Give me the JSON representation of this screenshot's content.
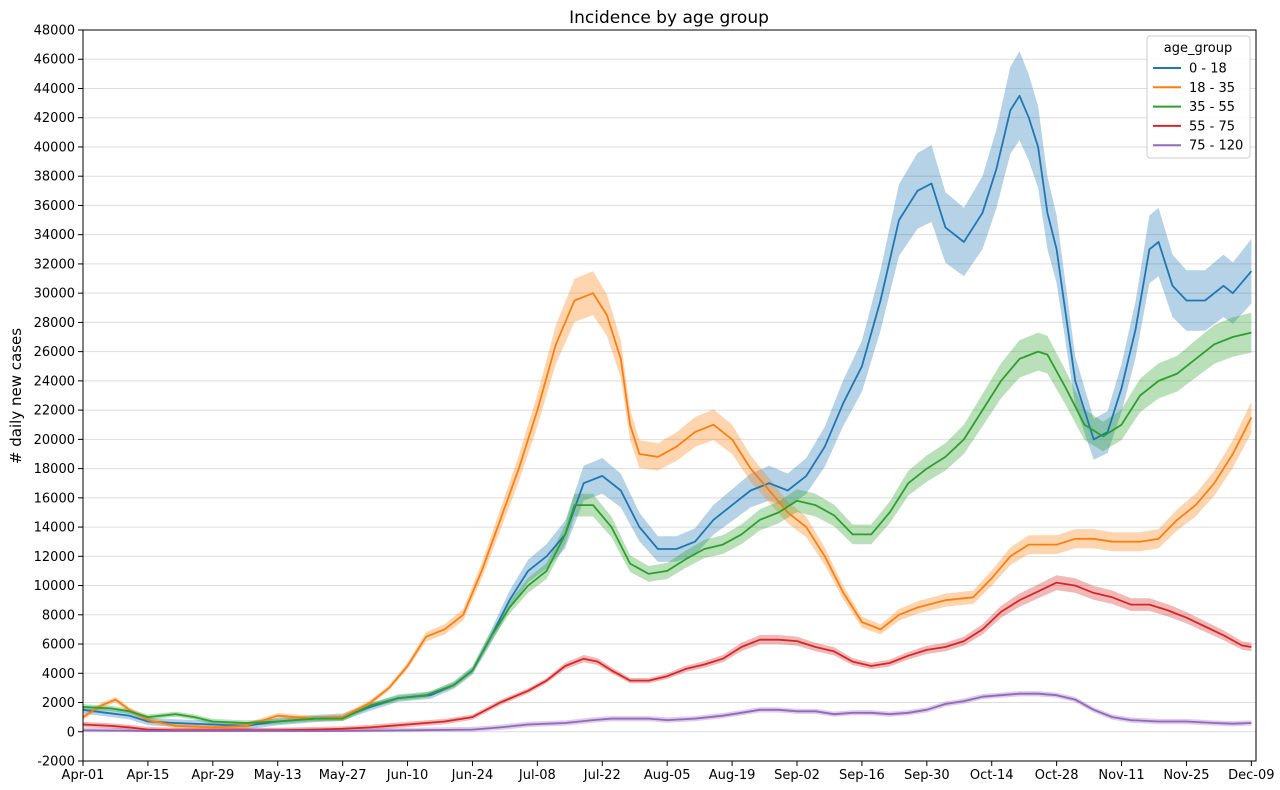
{
  "chart_data": {
    "type": "line",
    "title": "Incidence by age group",
    "xlabel": "",
    "ylabel": "# daily new cases",
    "ylim": [
      -2000,
      48000
    ],
    "yticks": [
      -2000,
      0,
      2000,
      4000,
      6000,
      8000,
      10000,
      12000,
      14000,
      16000,
      18000,
      20000,
      22000,
      24000,
      26000,
      28000,
      30000,
      32000,
      34000,
      36000,
      38000,
      40000,
      42000,
      44000,
      46000,
      48000
    ],
    "xlim": [
      0,
      253
    ],
    "xticks": [
      {
        "x": 0,
        "label": "Apr-01"
      },
      {
        "x": 14,
        "label": "Apr-15"
      },
      {
        "x": 28,
        "label": "Apr-29"
      },
      {
        "x": 42,
        "label": "May-13"
      },
      {
        "x": 56,
        "label": "May-27"
      },
      {
        "x": 70,
        "label": "Jun-10"
      },
      {
        "x": 84,
        "label": "Jun-24"
      },
      {
        "x": 98,
        "label": "Jul-08"
      },
      {
        "x": 112,
        "label": "Jul-22"
      },
      {
        "x": 126,
        "label": "Aug-05"
      },
      {
        "x": 140,
        "label": "Aug-19"
      },
      {
        "x": 154,
        "label": "Sep-02"
      },
      {
        "x": 168,
        "label": "Sep-16"
      },
      {
        "x": 182,
        "label": "Sep-30"
      },
      {
        "x": 196,
        "label": "Oct-14"
      },
      {
        "x": 210,
        "label": "Oct-28"
      },
      {
        "x": 224,
        "label": "Nov-11"
      },
      {
        "x": 238,
        "label": "Nov-25"
      },
      {
        "x": 252,
        "label": "Dec-09"
      }
    ],
    "grid": "horizontal",
    "legend": {
      "title": "age_group",
      "position": "top-right"
    },
    "series": [
      {
        "name": "0 - 18",
        "color": "#1f77b4",
        "points": [
          [
            0,
            1500
          ],
          [
            5,
            1300
          ],
          [
            10,
            1100
          ],
          [
            14,
            700
          ],
          [
            20,
            600
          ],
          [
            28,
            500
          ],
          [
            35,
            400
          ],
          [
            42,
            700
          ],
          [
            50,
            900
          ],
          [
            56,
            1000
          ],
          [
            62,
            1700
          ],
          [
            68,
            2300
          ],
          [
            75,
            2500
          ],
          [
            80,
            3200
          ],
          [
            84,
            4200
          ],
          [
            88,
            6500
          ],
          [
            92,
            9000
          ],
          [
            96,
            11000
          ],
          [
            100,
            12000
          ],
          [
            104,
            13500
          ],
          [
            108,
            17000
          ],
          [
            112,
            17500
          ],
          [
            116,
            16500
          ],
          [
            120,
            14000
          ],
          [
            124,
            12500
          ],
          [
            128,
            12500
          ],
          [
            132,
            13000
          ],
          [
            136,
            14500
          ],
          [
            140,
            15500
          ],
          [
            144,
            16500
          ],
          [
            148,
            17000
          ],
          [
            152,
            16500
          ],
          [
            156,
            17500
          ],
          [
            160,
            19500
          ],
          [
            164,
            22500
          ],
          [
            168,
            25000
          ],
          [
            172,
            29500
          ],
          [
            176,
            35000
          ],
          [
            180,
            37000
          ],
          [
            183,
            37500
          ],
          [
            186,
            34500
          ],
          [
            190,
            33500
          ],
          [
            194,
            35500
          ],
          [
            197,
            38500
          ],
          [
            200,
            42500
          ],
          [
            202,
            43500
          ],
          [
            204,
            42000
          ],
          [
            206,
            40000
          ],
          [
            208,
            35500
          ],
          [
            210,
            33000
          ],
          [
            212,
            28500
          ],
          [
            214,
            24000
          ],
          [
            218,
            20000
          ],
          [
            221,
            20500
          ],
          [
            224,
            23500
          ],
          [
            227,
            27500
          ],
          [
            230,
            33000
          ],
          [
            232,
            33500
          ],
          [
            235,
            30500
          ],
          [
            238,
            29500
          ],
          [
            242,
            29500
          ],
          [
            246,
            30500
          ],
          [
            248,
            30000
          ],
          [
            252,
            31500
          ]
        ]
      },
      {
        "name": "18 - 35",
        "color": "#ff7f0e",
        "points": [
          [
            0,
            1000
          ],
          [
            4,
            1800
          ],
          [
            7,
            2200
          ],
          [
            10,
            1500
          ],
          [
            14,
            800
          ],
          [
            20,
            400
          ],
          [
            28,
            300
          ],
          [
            35,
            400
          ],
          [
            42,
            1100
          ],
          [
            50,
            900
          ],
          [
            56,
            1000
          ],
          [
            62,
            2000
          ],
          [
            66,
            3000
          ],
          [
            70,
            4500
          ],
          [
            74,
            6500
          ],
          [
            78,
            7000
          ],
          [
            82,
            8000
          ],
          [
            86,
            11000
          ],
          [
            90,
            14500
          ],
          [
            94,
            18000
          ],
          [
            98,
            22000
          ],
          [
            102,
            26500
          ],
          [
            106,
            29500
          ],
          [
            110,
            30000
          ],
          [
            113,
            28500
          ],
          [
            116,
            25500
          ],
          [
            118,
            21000
          ],
          [
            120,
            19000
          ],
          [
            124,
            18800
          ],
          [
            128,
            19500
          ],
          [
            132,
            20500
          ],
          [
            136,
            21000
          ],
          [
            140,
            20000
          ],
          [
            144,
            18000
          ],
          [
            148,
            16500
          ],
          [
            152,
            15000
          ],
          [
            156,
            14000
          ],
          [
            160,
            12000
          ],
          [
            164,
            9500
          ],
          [
            168,
            7500
          ],
          [
            172,
            7000
          ],
          [
            176,
            8000
          ],
          [
            180,
            8500
          ],
          [
            186,
            9000
          ],
          [
            192,
            9200
          ],
          [
            196,
            10500
          ],
          [
            200,
            12000
          ],
          [
            204,
            12800
          ],
          [
            210,
            12800
          ],
          [
            214,
            13200
          ],
          [
            218,
            13200
          ],
          [
            222,
            13000
          ],
          [
            228,
            13000
          ],
          [
            232,
            13200
          ],
          [
            236,
            14500
          ],
          [
            240,
            15500
          ],
          [
            244,
            17000
          ],
          [
            248,
            19000
          ],
          [
            252,
            21500
          ]
        ]
      },
      {
        "name": "35 - 55",
        "color": "#2ca02c",
        "points": [
          [
            0,
            1700
          ],
          [
            6,
            1600
          ],
          [
            10,
            1400
          ],
          [
            14,
            1000
          ],
          [
            20,
            1200
          ],
          [
            24,
            1000
          ],
          [
            28,
            700
          ],
          [
            35,
            600
          ],
          [
            42,
            700
          ],
          [
            50,
            900
          ],
          [
            56,
            900
          ],
          [
            62,
            1800
          ],
          [
            68,
            2300
          ],
          [
            74,
            2500
          ],
          [
            80,
            3200
          ],
          [
            84,
            4200
          ],
          [
            88,
            6500
          ],
          [
            92,
            8500
          ],
          [
            96,
            10000
          ],
          [
            100,
            11000
          ],
          [
            104,
            13500
          ],
          [
            106,
            15500
          ],
          [
            110,
            15500
          ],
          [
            114,
            14000
          ],
          [
            118,
            11500
          ],
          [
            122,
            10800
          ],
          [
            126,
            11000
          ],
          [
            130,
            11800
          ],
          [
            134,
            12500
          ],
          [
            138,
            12800
          ],
          [
            142,
            13500
          ],
          [
            146,
            14500
          ],
          [
            150,
            15000
          ],
          [
            154,
            15800
          ],
          [
            158,
            15500
          ],
          [
            162,
            14800
          ],
          [
            166,
            13500
          ],
          [
            170,
            13500
          ],
          [
            174,
            15000
          ],
          [
            178,
            17000
          ],
          [
            182,
            18000
          ],
          [
            186,
            18800
          ],
          [
            190,
            20000
          ],
          [
            194,
            22000
          ],
          [
            198,
            24000
          ],
          [
            202,
            25500
          ],
          [
            206,
            26000
          ],
          [
            208,
            25800
          ],
          [
            212,
            23500
          ],
          [
            216,
            21000
          ],
          [
            220,
            20200
          ],
          [
            224,
            21000
          ],
          [
            228,
            23000
          ],
          [
            232,
            24000
          ],
          [
            236,
            24500
          ],
          [
            240,
            25500
          ],
          [
            244,
            26500
          ],
          [
            248,
            27000
          ],
          [
            252,
            27300
          ]
        ]
      },
      {
        "name": "55 - 75",
        "color": "#d62728",
        "points": [
          [
            0,
            500
          ],
          [
            6,
            400
          ],
          [
            10,
            300
          ],
          [
            14,
            150
          ],
          [
            20,
            100
          ],
          [
            28,
            100
          ],
          [
            35,
            100
          ],
          [
            42,
            100
          ],
          [
            50,
            150
          ],
          [
            56,
            200
          ],
          [
            62,
            300
          ],
          [
            70,
            500
          ],
          [
            78,
            700
          ],
          [
            84,
            1000
          ],
          [
            90,
            2000
          ],
          [
            96,
            2800
          ],
          [
            100,
            3500
          ],
          [
            104,
            4500
          ],
          [
            108,
            5000
          ],
          [
            111,
            4800
          ],
          [
            114,
            4200
          ],
          [
            118,
            3500
          ],
          [
            122,
            3500
          ],
          [
            126,
            3800
          ],
          [
            130,
            4300
          ],
          [
            134,
            4600
          ],
          [
            138,
            5000
          ],
          [
            142,
            5800
          ],
          [
            146,
            6300
          ],
          [
            150,
            6300
          ],
          [
            154,
            6200
          ],
          [
            158,
            5800
          ],
          [
            162,
            5500
          ],
          [
            166,
            4800
          ],
          [
            170,
            4500
          ],
          [
            174,
            4700
          ],
          [
            178,
            5200
          ],
          [
            182,
            5600
          ],
          [
            186,
            5800
          ],
          [
            190,
            6200
          ],
          [
            194,
            7000
          ],
          [
            198,
            8200
          ],
          [
            202,
            9000
          ],
          [
            206,
            9600
          ],
          [
            210,
            10200
          ],
          [
            214,
            10000
          ],
          [
            218,
            9500
          ],
          [
            222,
            9200
          ],
          [
            226,
            8700
          ],
          [
            230,
            8700
          ],
          [
            234,
            8300
          ],
          [
            238,
            7800
          ],
          [
            242,
            7200
          ],
          [
            246,
            6600
          ],
          [
            250,
            5900
          ],
          [
            252,
            5800
          ]
        ]
      },
      {
        "name": "75 - 120",
        "color": "#9467bd",
        "points": [
          [
            0,
            100
          ],
          [
            14,
            50
          ],
          [
            28,
            50
          ],
          [
            42,
            50
          ],
          [
            56,
            50
          ],
          [
            70,
            100
          ],
          [
            84,
            150
          ],
          [
            90,
            300
          ],
          [
            96,
            500
          ],
          [
            104,
            600
          ],
          [
            110,
            800
          ],
          [
            114,
            900
          ],
          [
            118,
            900
          ],
          [
            122,
            900
          ],
          [
            126,
            800
          ],
          [
            132,
            900
          ],
          [
            138,
            1100
          ],
          [
            142,
            1300
          ],
          [
            146,
            1500
          ],
          [
            150,
            1500
          ],
          [
            154,
            1400
          ],
          [
            158,
            1400
          ],
          [
            162,
            1200
          ],
          [
            166,
            1300
          ],
          [
            170,
            1300
          ],
          [
            174,
            1200
          ],
          [
            178,
            1300
          ],
          [
            182,
            1500
          ],
          [
            186,
            1900
          ],
          [
            190,
            2100
          ],
          [
            194,
            2400
          ],
          [
            198,
            2500
          ],
          [
            202,
            2600
          ],
          [
            206,
            2600
          ],
          [
            210,
            2500
          ],
          [
            214,
            2200
          ],
          [
            218,
            1500
          ],
          [
            222,
            1000
          ],
          [
            226,
            800
          ],
          [
            232,
            700
          ],
          [
            238,
            700
          ],
          [
            244,
            600
          ],
          [
            248,
            550
          ],
          [
            252,
            600
          ]
        ]
      }
    ]
  }
}
